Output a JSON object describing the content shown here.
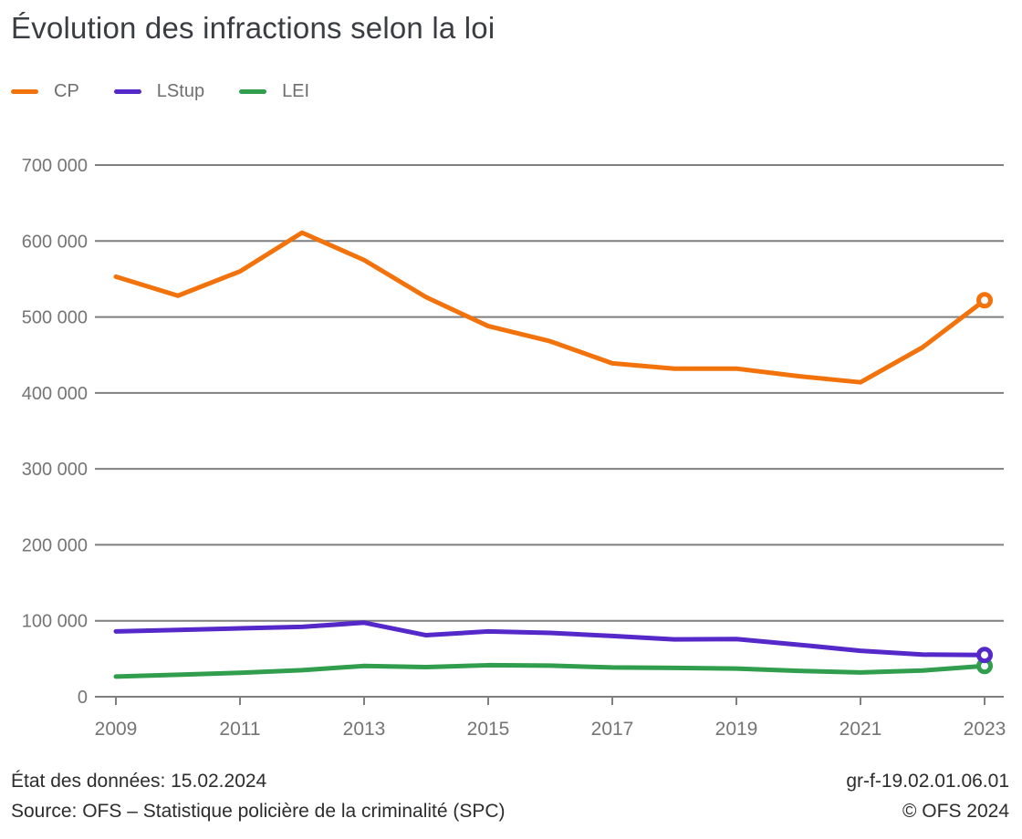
{
  "title": "Évolution des infractions selon la loi",
  "legend": [
    {
      "label": "CP",
      "color": "#f2720c"
    },
    {
      "label": "LStup",
      "color": "#5528c9"
    },
    {
      "label": "LEI",
      "color": "#309e4d"
    }
  ],
  "footer": {
    "status": "État des données: 15.02.2024",
    "source": "Source: OFS – Statistique policière de la criminalité (SPC)",
    "reference": "gr-f-19.02.01.06.01",
    "copyright": "© OFS 2024"
  },
  "chart_data": {
    "type": "line",
    "title": "Évolution des infractions selon la loi",
    "x": [
      2009,
      2010,
      2011,
      2012,
      2013,
      2014,
      2015,
      2016,
      2017,
      2018,
      2019,
      2020,
      2021,
      2022,
      2023
    ],
    "series": [
      {
        "name": "CP",
        "color": "#f2720c",
        "values": [
          553000,
          528000,
          560000,
          611000,
          575000,
          526000,
          488000,
          468000,
          439000,
          432000,
          432000,
          422000,
          414000,
          460000,
          522000
        ],
        "end_marker": "open-circle"
      },
      {
        "name": "LStup",
        "color": "#5528c9",
        "values": [
          86000,
          88000,
          90000,
          92000,
          97500,
          81000,
          86000,
          84000,
          80000,
          75500,
          76000,
          68500,
          60500,
          55500,
          55000
        ],
        "end_marker": "open-circle"
      },
      {
        "name": "LEI",
        "color": "#309e4d",
        "values": [
          26500,
          29000,
          31500,
          35000,
          40500,
          39000,
          41500,
          41000,
          38500,
          38000,
          37000,
          34000,
          32000,
          34500,
          40500
        ],
        "end_marker": "open-circle"
      }
    ],
    "ylim": [
      0,
      700000
    ],
    "y_tick_step": 100000,
    "y_tick_labels": [
      "0",
      "100 000",
      "200 000",
      "300 000",
      "400 000",
      "500 000",
      "600 000",
      "700 000"
    ],
    "x_tick_labels": [
      "2009",
      "2011",
      "2013",
      "2015",
      "2017",
      "2019",
      "2021",
      "2023"
    ],
    "grid": "horizontal",
    "legend_position": "top-left"
  }
}
